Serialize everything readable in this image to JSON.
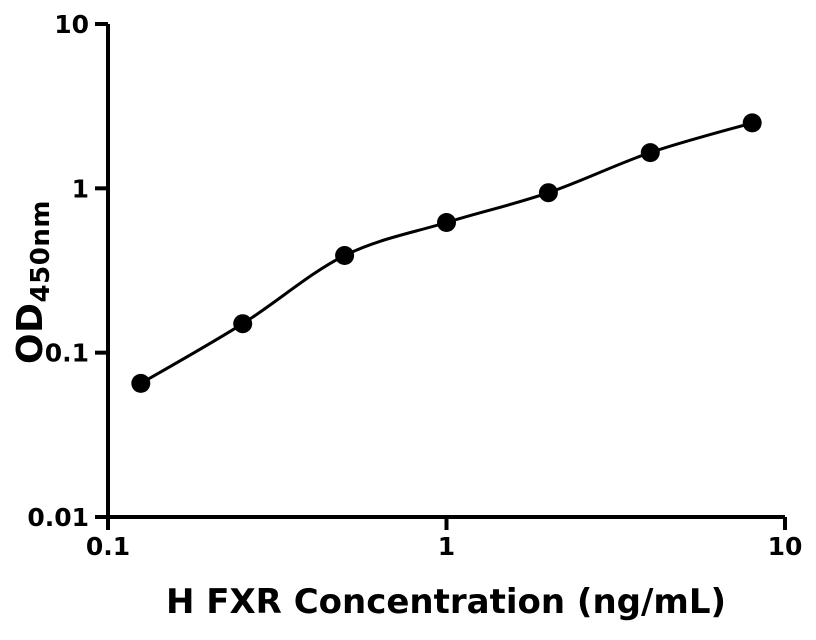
{
  "figure": {
    "background_color": "#ffffff",
    "foreground_color": "#000000"
  },
  "chart_data": {
    "type": "scatter",
    "title": "",
    "xlabel": "H FXR Concentration (ng/mL)",
    "ylabel_main": "OD",
    "ylabel_sub": "450nm",
    "x_scale": "log",
    "y_scale": "log",
    "xlim": [
      0.1,
      10
    ],
    "ylim": [
      0.01,
      10
    ],
    "x": [
      0.125,
      0.25,
      0.5,
      1,
      2,
      4,
      8
    ],
    "y": [
      0.065,
      0.15,
      0.39,
      0.62,
      0.94,
      1.65,
      2.5
    ],
    "x_ticks": [
      {
        "value": 0.1,
        "label": "0.1"
      },
      {
        "value": 1,
        "label": "1"
      },
      {
        "value": 10,
        "label": "10"
      }
    ],
    "y_ticks": [
      {
        "value": 10,
        "label": "10"
      },
      {
        "value": 1,
        "label": "1"
      },
      {
        "value": 0.1,
        "label": "0.1"
      },
      {
        "value": 0.01,
        "label": "0.01"
      }
    ],
    "grid": false,
    "legend": "none",
    "has_fit_curve": true,
    "marker_color": "#000000",
    "line_color": "#000000",
    "axis_color": "#000000"
  }
}
